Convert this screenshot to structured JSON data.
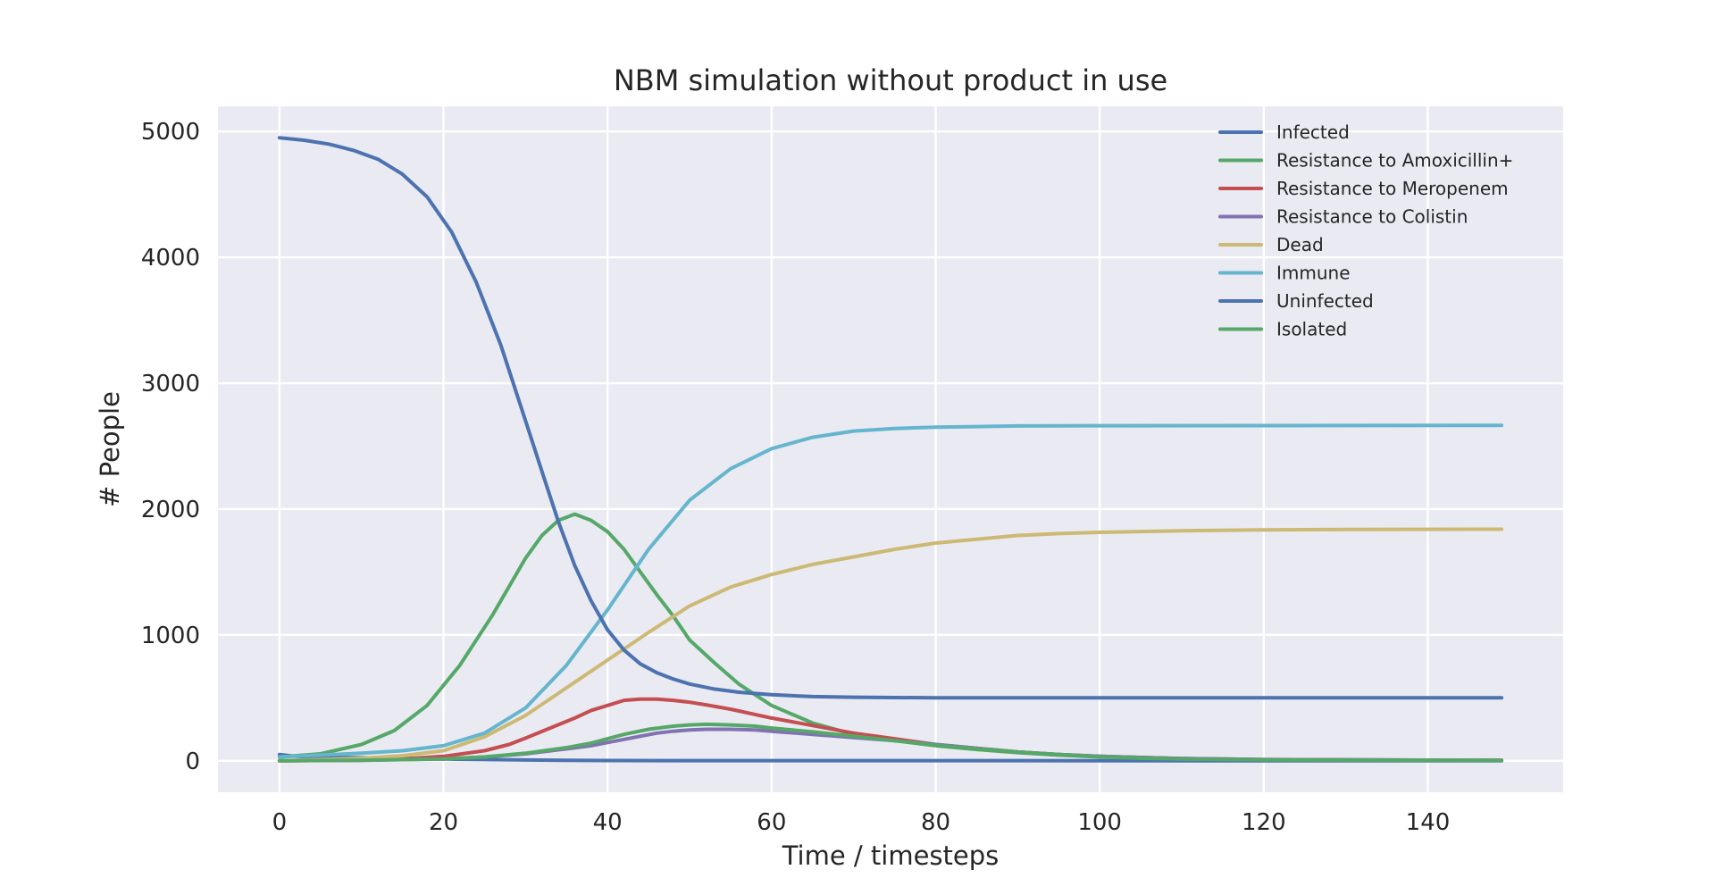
{
  "chart_data": {
    "type": "line",
    "title": "NBM simulation without product in use",
    "xlabel": "Time / timesteps",
    "ylabel": "# People",
    "xlim": [
      -7.5,
      156.5
    ],
    "ylim": [
      -250,
      5200
    ],
    "xticks": [
      0,
      20,
      40,
      60,
      80,
      100,
      120,
      140
    ],
    "yticks": [
      0,
      1000,
      2000,
      3000,
      4000,
      5000
    ],
    "grid": true,
    "legend_position": "top-right",
    "background": "#eaeaf2",
    "series": [
      {
        "name": "Infected",
        "color": "#4c72b0",
        "points": [
          [
            0,
            50
          ],
          [
            2,
            35
          ],
          [
            4,
            30
          ],
          [
            6,
            28
          ],
          [
            8,
            26
          ],
          [
            10,
            24
          ],
          [
            12,
            22
          ],
          [
            14,
            20
          ],
          [
            16,
            18
          ],
          [
            18,
            16
          ],
          [
            20,
            14
          ],
          [
            25,
            10
          ],
          [
            30,
            6
          ],
          [
            35,
            3
          ],
          [
            40,
            2
          ],
          [
            50,
            1
          ],
          [
            149,
            0
          ]
        ]
      },
      {
        "name": "Resistance to Amoxicillin+",
        "color": "#55a868",
        "points": [
          [
            0,
            30
          ],
          [
            5,
            55
          ],
          [
            10,
            130
          ],
          [
            14,
            240
          ],
          [
            18,
            440
          ],
          [
            22,
            760
          ],
          [
            26,
            1160
          ],
          [
            30,
            1610
          ],
          [
            32,
            1790
          ],
          [
            34,
            1910
          ],
          [
            36,
            1960
          ],
          [
            38,
            1910
          ],
          [
            40,
            1820
          ],
          [
            42,
            1680
          ],
          [
            44,
            1500
          ],
          [
            46,
            1320
          ],
          [
            48,
            1150
          ],
          [
            50,
            960
          ],
          [
            53,
            780
          ],
          [
            56,
            610
          ],
          [
            60,
            440
          ],
          [
            65,
            300
          ],
          [
            70,
            210
          ],
          [
            75,
            160
          ],
          [
            80,
            120
          ],
          [
            85,
            90
          ],
          [
            90,
            65
          ],
          [
            95,
            45
          ],
          [
            100,
            30
          ],
          [
            105,
            20
          ],
          [
            110,
            15
          ],
          [
            120,
            8
          ],
          [
            130,
            5
          ],
          [
            149,
            3
          ]
        ]
      },
      {
        "name": "Resistance to Meropenem",
        "color": "#c44e52",
        "points": [
          [
            0,
            0
          ],
          [
            10,
            5
          ],
          [
            15,
            15
          ],
          [
            20,
            35
          ],
          [
            25,
            80
          ],
          [
            28,
            130
          ],
          [
            30,
            180
          ],
          [
            33,
            260
          ],
          [
            36,
            340
          ],
          [
            38,
            400
          ],
          [
            40,
            440
          ],
          [
            42,
            480
          ],
          [
            44,
            490
          ],
          [
            46,
            490
          ],
          [
            48,
            480
          ],
          [
            50,
            465
          ],
          [
            52,
            445
          ],
          [
            55,
            410
          ],
          [
            60,
            340
          ],
          [
            65,
            280
          ],
          [
            70,
            220
          ],
          [
            75,
            175
          ],
          [
            80,
            130
          ],
          [
            85,
            100
          ],
          [
            90,
            70
          ],
          [
            95,
            50
          ],
          [
            100,
            35
          ],
          [
            110,
            18
          ],
          [
            120,
            10
          ],
          [
            149,
            3
          ]
        ]
      },
      {
        "name": "Resistance to Colistin",
        "color": "#8172b2",
        "points": [
          [
            0,
            0
          ],
          [
            10,
            3
          ],
          [
            20,
            15
          ],
          [
            25,
            30
          ],
          [
            30,
            55
          ],
          [
            35,
            95
          ],
          [
            38,
            120
          ],
          [
            40,
            145
          ],
          [
            42,
            170
          ],
          [
            44,
            195
          ],
          [
            46,
            220
          ],
          [
            48,
            235
          ],
          [
            50,
            245
          ],
          [
            52,
            250
          ],
          [
            55,
            250
          ],
          [
            58,
            245
          ],
          [
            60,
            235
          ],
          [
            65,
            210
          ],
          [
            70,
            185
          ],
          [
            75,
            160
          ],
          [
            80,
            130
          ],
          [
            85,
            100
          ],
          [
            90,
            70
          ],
          [
            95,
            50
          ],
          [
            100,
            35
          ],
          [
            110,
            18
          ],
          [
            120,
            10
          ],
          [
            149,
            3
          ]
        ]
      },
      {
        "name": "Dead",
        "color": "#ccb974",
        "points": [
          [
            0,
            0
          ],
          [
            5,
            10
          ],
          [
            10,
            20
          ],
          [
            15,
            40
          ],
          [
            20,
            80
          ],
          [
            25,
            190
          ],
          [
            30,
            360
          ],
          [
            35,
            580
          ],
          [
            40,
            800
          ],
          [
            45,
            1020
          ],
          [
            50,
            1230
          ],
          [
            55,
            1380
          ],
          [
            60,
            1480
          ],
          [
            65,
            1560
          ],
          [
            70,
            1620
          ],
          [
            75,
            1680
          ],
          [
            80,
            1730
          ],
          [
            85,
            1760
          ],
          [
            90,
            1790
          ],
          [
            95,
            1805
          ],
          [
            100,
            1815
          ],
          [
            110,
            1828
          ],
          [
            120,
            1835
          ],
          [
            130,
            1838
          ],
          [
            149,
            1840
          ]
        ]
      },
      {
        "name": "Immune",
        "color": "#64b5cd",
        "points": [
          [
            0,
            30
          ],
          [
            5,
            45
          ],
          [
            10,
            60
          ],
          [
            15,
            80
          ],
          [
            20,
            120
          ],
          [
            25,
            220
          ],
          [
            30,
            420
          ],
          [
            35,
            760
          ],
          [
            40,
            1200
          ],
          [
            45,
            1680
          ],
          [
            50,
            2070
          ],
          [
            55,
            2320
          ],
          [
            60,
            2480
          ],
          [
            65,
            2570
          ],
          [
            70,
            2620
          ],
          [
            75,
            2640
          ],
          [
            80,
            2650
          ],
          [
            85,
            2655
          ],
          [
            90,
            2660
          ],
          [
            100,
            2662
          ],
          [
            149,
            2665
          ]
        ]
      },
      {
        "name": "Uninfected",
        "color": "#4c72b0",
        "points": [
          [
            0,
            4950
          ],
          [
            3,
            4930
          ],
          [
            6,
            4900
          ],
          [
            9,
            4850
          ],
          [
            12,
            4780
          ],
          [
            15,
            4660
          ],
          [
            18,
            4480
          ],
          [
            21,
            4200
          ],
          [
            24,
            3800
          ],
          [
            27,
            3300
          ],
          [
            30,
            2700
          ],
          [
            32,
            2300
          ],
          [
            34,
            1900
          ],
          [
            36,
            1550
          ],
          [
            38,
            1270
          ],
          [
            40,
            1040
          ],
          [
            42,
            880
          ],
          [
            44,
            770
          ],
          [
            46,
            700
          ],
          [
            48,
            650
          ],
          [
            50,
            610
          ],
          [
            53,
            570
          ],
          [
            56,
            545
          ],
          [
            60,
            525
          ],
          [
            65,
            510
          ],
          [
            70,
            505
          ],
          [
            80,
            500
          ],
          [
            149,
            500
          ]
        ]
      },
      {
        "name": "Isolated",
        "color": "#55a868",
        "points": [
          [
            0,
            0
          ],
          [
            10,
            5
          ],
          [
            20,
            15
          ],
          [
            25,
            30
          ],
          [
            30,
            60
          ],
          [
            35,
            105
          ],
          [
            38,
            140
          ],
          [
            40,
            175
          ],
          [
            42,
            210
          ],
          [
            45,
            250
          ],
          [
            48,
            275
          ],
          [
            50,
            285
          ],
          [
            52,
            290
          ],
          [
            55,
            285
          ],
          [
            58,
            275
          ],
          [
            60,
            260
          ],
          [
            65,
            230
          ],
          [
            70,
            195
          ],
          [
            75,
            160
          ],
          [
            80,
            125
          ],
          [
            85,
            95
          ],
          [
            90,
            70
          ],
          [
            95,
            50
          ],
          [
            100,
            32
          ],
          [
            110,
            15
          ],
          [
            120,
            8
          ],
          [
            149,
            2
          ]
        ]
      }
    ]
  }
}
